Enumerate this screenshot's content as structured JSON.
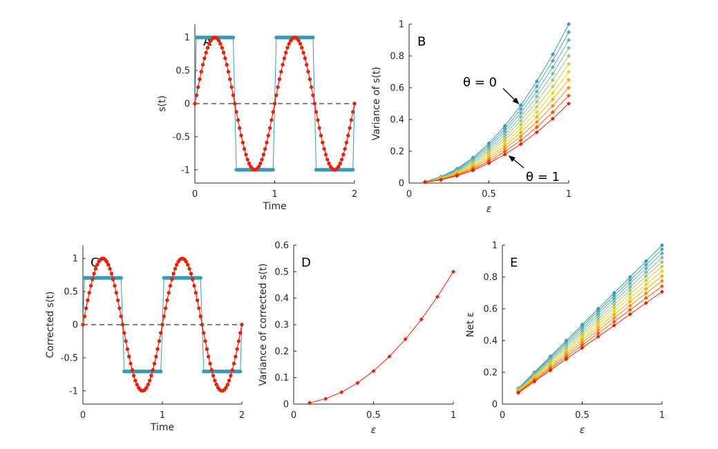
{
  "chart_data": [
    {
      "panel": "A",
      "type": "line",
      "xlabel": "Time",
      "ylabel": "s(t)",
      "xlim": [
        0,
        2
      ],
      "ylim": [
        -1.2,
        1.2
      ],
      "xticks": [
        "0",
        "1",
        "2"
      ],
      "yticks": [
        "-1",
        "-0.5",
        "0",
        "0.5",
        "1"
      ],
      "series": [
        {
          "name": "square wave",
          "color": "#3a9ab4",
          "function": "sign(sin(2*pi*t))",
          "amplitude": 1,
          "points": 100
        },
        {
          "name": "sine wave",
          "color": "#e8220a",
          "function": "sin(2*pi*t)",
          "amplitude": 1,
          "points": 100
        },
        {
          "name": "zero line",
          "color": "#000000",
          "style": "dashed",
          "y": 0
        }
      ]
    },
    {
      "panel": "B",
      "type": "line",
      "xlabel": "ε",
      "ylabel": "Variance of s(t)",
      "xlim": [
        0,
        1
      ],
      "ylim": [
        0,
        1
      ],
      "xticks": [
        "0",
        "0.5",
        "1"
      ],
      "yticks": [
        "0",
        "0.2",
        "0.4",
        "0.6",
        "0.8",
        "1"
      ],
      "x": [
        0.1,
        0.2,
        0.3,
        0.4,
        0.5,
        0.6,
        0.7,
        0.8,
        0.9,
        1.0
      ],
      "theta": [
        0,
        0.1,
        0.2,
        0.3,
        0.4,
        0.5,
        0.6,
        0.7,
        0.8,
        0.9,
        1
      ],
      "model": "y = (1 - theta/2) * x^2",
      "annotations": [
        {
          "text": "θ = 0",
          "points_to": [
            0.7,
            0.49
          ]
        },
        {
          "text": "θ = 1",
          "points_to": [
            0.6,
            0.18
          ]
        }
      ]
    },
    {
      "panel": "C",
      "type": "line",
      "xlabel": "Time",
      "ylabel": "Corrected s(t)",
      "xlim": [
        0,
        2
      ],
      "ylim": [
        -1.2,
        1.2
      ],
      "xticks": [
        "0",
        "1",
        "2"
      ],
      "yticks": [
        "-1",
        "-0.5",
        "0",
        "0.5",
        "1"
      ],
      "series": [
        {
          "name": "corrected square wave",
          "color": "#3a9ab4",
          "function": "0.707*sign(sin(2*pi*t))",
          "amplitude": 0.707,
          "points": 100
        },
        {
          "name": "sine wave",
          "color": "#e8220a",
          "function": "sin(2*pi*t)",
          "amplitude": 1,
          "points": 100
        },
        {
          "name": "zero line",
          "color": "#000000",
          "style": "dashed",
          "y": 0
        }
      ]
    },
    {
      "panel": "D",
      "type": "line",
      "xlabel": "ε",
      "ylabel": "Variance of corrected s(t)",
      "xlim": [
        0,
        1
      ],
      "ylim": [
        0,
        0.6
      ],
      "xticks": [
        "0",
        "0.5",
        "1"
      ],
      "yticks": [
        "0",
        "0.1",
        "0.2",
        "0.3",
        "0.4",
        "0.5",
        "0.6"
      ],
      "x": [
        0.1,
        0.2,
        0.3,
        0.4,
        0.5,
        0.6,
        0.7,
        0.8,
        0.9,
        1.0
      ],
      "values": [
        0.005,
        0.02,
        0.045,
        0.08,
        0.125,
        0.18,
        0.245,
        0.32,
        0.405,
        0.5
      ],
      "color": "#e8220a"
    },
    {
      "panel": "E",
      "type": "line",
      "xlabel": "ε",
      "ylabel": "Net ε",
      "xlim": [
        0,
        1
      ],
      "ylim": [
        0,
        1
      ],
      "xticks": [
        "0",
        "0.5",
        "1"
      ],
      "yticks": [
        "0",
        "0.2",
        "0.4",
        "0.6",
        "0.8",
        "1"
      ],
      "x": [
        0.1,
        0.2,
        0.3,
        0.4,
        0.5,
        0.6,
        0.7,
        0.8,
        0.9,
        1.0
      ],
      "theta": [
        0,
        0.1,
        0.2,
        0.3,
        0.4,
        0.5,
        0.6,
        0.7,
        0.8,
        0.9,
        1
      ],
      "model": "y = x * sqrt(1 - theta/2)"
    }
  ]
}
